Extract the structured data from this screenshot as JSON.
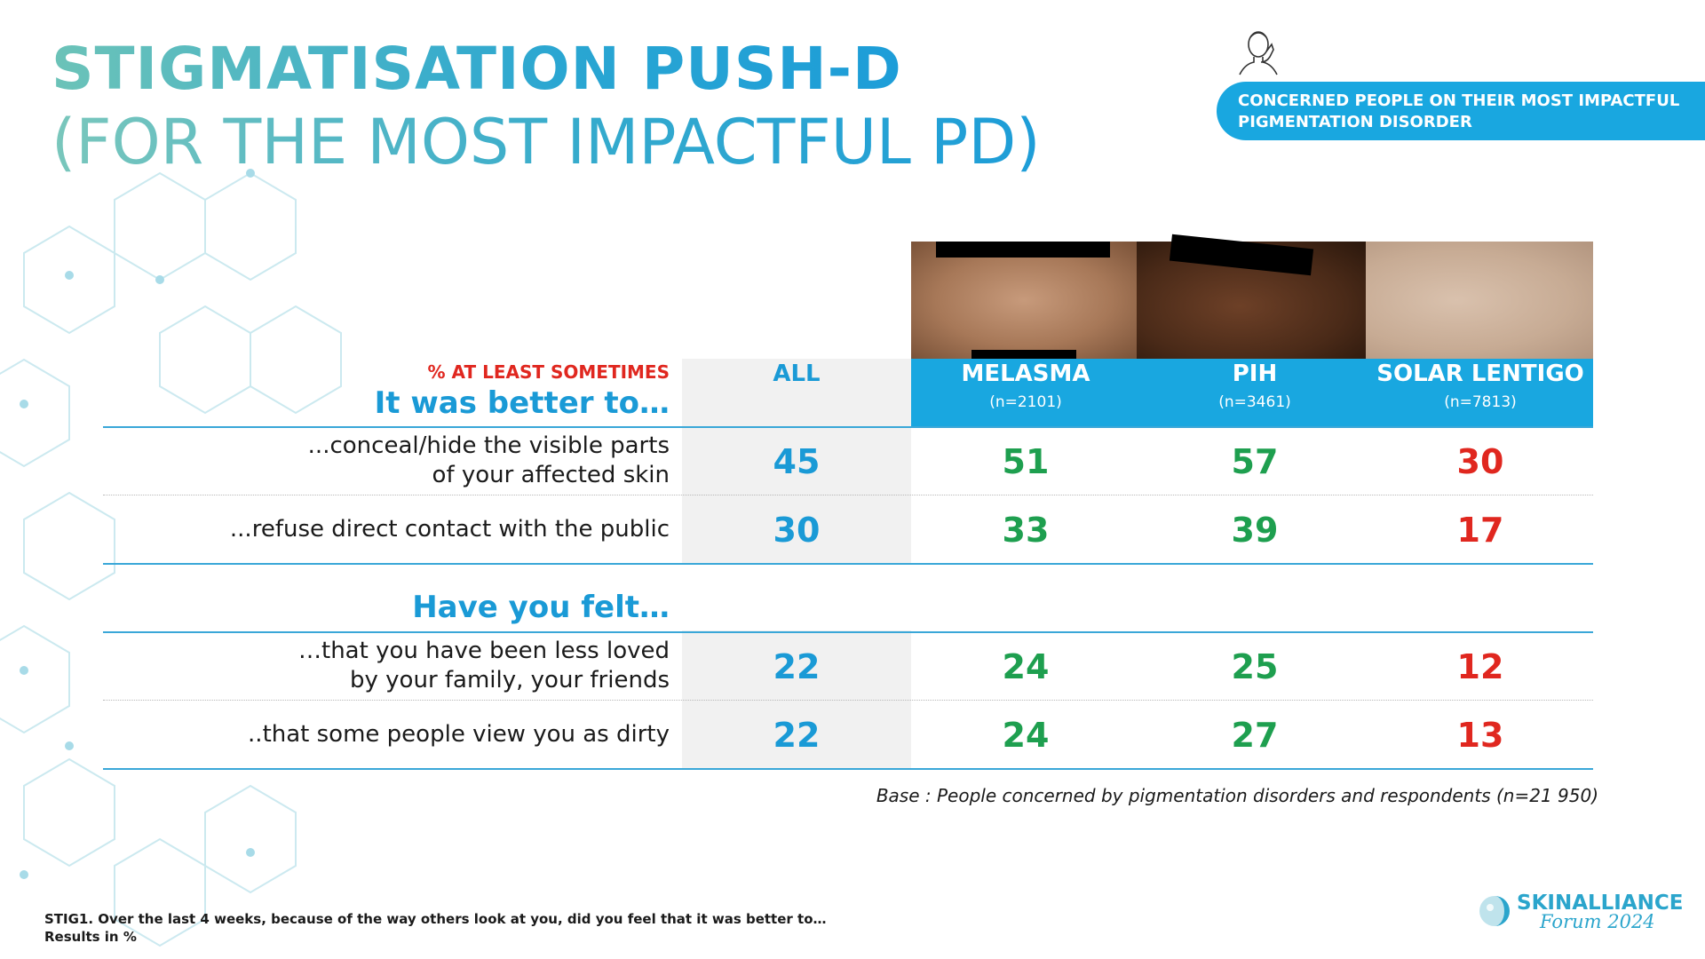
{
  "title": {
    "line1": "STIGMATISATION PUSH-D",
    "line2": "(FOR THE MOST IMPACTFUL PD)"
  },
  "badge": {
    "line1": "CONCERNED PEOPLE ON THEIR MOST IMPACTFUL",
    "line2": "PIGMENTATION DISORDER",
    "icon": "face-touch-icon"
  },
  "table": {
    "measure_label": "% AT LEAST SOMETIMES",
    "columns": [
      {
        "label": "ALL",
        "n": ""
      },
      {
        "label": "MELASMA",
        "n": "(n=2101)"
      },
      {
        "label": "PIH",
        "n": "(n=3461)"
      },
      {
        "label": "SOLAR LENTIGO",
        "n": "(n=7813)"
      }
    ],
    "sections": [
      {
        "heading": "It was better to…",
        "rows": [
          {
            "line1": "...conceal/hide the visible parts",
            "line2": "of your affected skin",
            "values": [
              "45",
              "51",
              "57",
              "30"
            ]
          },
          {
            "line1": "...refuse direct contact with the public",
            "line2": "",
            "values": [
              "30",
              "33",
              "39",
              "17"
            ]
          }
        ]
      },
      {
        "heading": "Have you felt…",
        "rows": [
          {
            "line1": "…that you have been less loved",
            "line2": "by your family, your friends",
            "values": [
              "22",
              "24",
              "25",
              "12"
            ]
          },
          {
            "line1": "..that some people view you as dirty",
            "line2": "",
            "values": [
              "22",
              "24",
              "27",
              "13"
            ]
          }
        ]
      }
    ],
    "colors": {
      "all": "#1a9ad6",
      "higher": "#1e9f4f",
      "lower": "#e0271f",
      "header": "#19a7e0"
    }
  },
  "base_note": "Base : People concerned by pigmentation disorders and respondents (n=21 950)",
  "footnote": {
    "line1": "STIG1. Over the last 4 weeks, because of the way others look at you, did you feel that it was better to…",
    "line2": "Results in %"
  },
  "logo": {
    "name": "SKINALLIANCE",
    "sub": "Forum 2024"
  }
}
